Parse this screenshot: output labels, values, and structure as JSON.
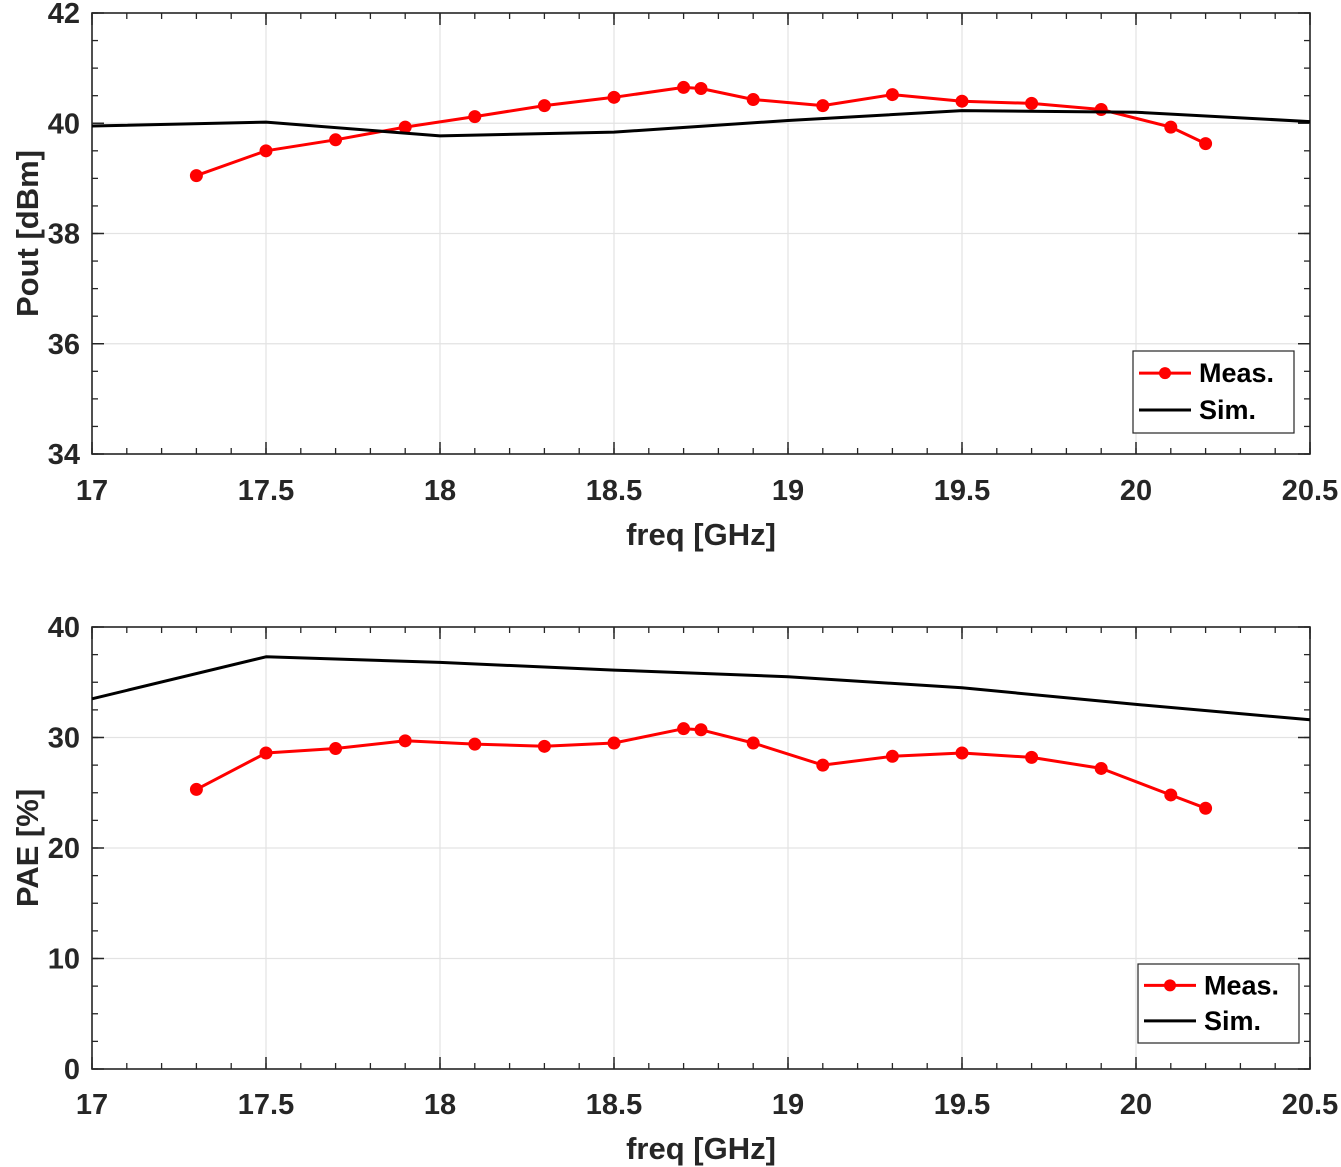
{
  "colors": {
    "meas": "#ff0000",
    "sim": "#000000",
    "grid": "#e3e3e3",
    "axis": "#262626"
  },
  "chart_data": [
    {
      "type": "line",
      "xlabel": "freq [GHz]",
      "ylabel": "Pout [dBm]",
      "xlim": [
        17,
        20.5
      ],
      "ylim": [
        34,
        42
      ],
      "xticks": [
        "17",
        "17.5",
        "18",
        "18.5",
        "19",
        "19.5",
        "20",
        "20.5"
      ],
      "yticks": [
        "34",
        "36",
        "38",
        "40",
        "42"
      ],
      "grid": true,
      "legend_position": "bottom-right",
      "series": [
        {
          "name": "Meas.",
          "marker": "circle",
          "x": [
            17.3,
            17.5,
            17.7,
            17.9,
            18.1,
            18.3,
            18.5,
            18.7,
            18.75,
            18.9,
            19.1,
            19.3,
            19.5,
            19.7,
            19.9,
            20.1,
            20.2
          ],
          "y": [
            39.05,
            39.5,
            39.7,
            39.93,
            40.12,
            40.32,
            40.47,
            40.65,
            40.63,
            40.43,
            40.32,
            40.52,
            40.4,
            40.36,
            40.25,
            39.93,
            39.63
          ]
        },
        {
          "name": "Sim.",
          "marker": "none",
          "x": [
            17,
            17.5,
            18,
            18.5,
            19,
            19.5,
            20,
            20.5
          ],
          "y": [
            39.95,
            40.02,
            39.77,
            39.84,
            40.05,
            40.23,
            40.2,
            40.03
          ]
        }
      ]
    },
    {
      "type": "line",
      "xlabel": "freq [GHz]",
      "ylabel": "PAE [%]",
      "xlim": [
        17,
        20.5
      ],
      "ylim": [
        0,
        40
      ],
      "xticks": [
        "17",
        "17.5",
        "18",
        "18.5",
        "19",
        "19.5",
        "20",
        "20.5"
      ],
      "yticks": [
        "0",
        "10",
        "20",
        "30",
        "40"
      ],
      "grid": true,
      "legend_position": "bottom-right",
      "series": [
        {
          "name": "Meas.",
          "marker": "circle",
          "x": [
            17.3,
            17.5,
            17.7,
            17.9,
            18.1,
            18.3,
            18.5,
            18.7,
            18.75,
            18.9,
            19.1,
            19.3,
            19.5,
            19.7,
            19.9,
            20.1,
            20.2
          ],
          "y": [
            25.3,
            28.6,
            29.0,
            29.7,
            29.4,
            29.2,
            29.5,
            30.8,
            30.7,
            29.5,
            27.5,
            28.3,
            28.6,
            28.2,
            27.2,
            24.8,
            23.6
          ]
        },
        {
          "name": "Sim.",
          "marker": "none",
          "x": [
            17,
            17.5,
            18,
            18.5,
            19,
            19.5,
            20,
            20.5
          ],
          "y": [
            33.5,
            37.3,
            36.8,
            36.1,
            35.5,
            34.5,
            33.0,
            31.6
          ]
        }
      ]
    }
  ]
}
